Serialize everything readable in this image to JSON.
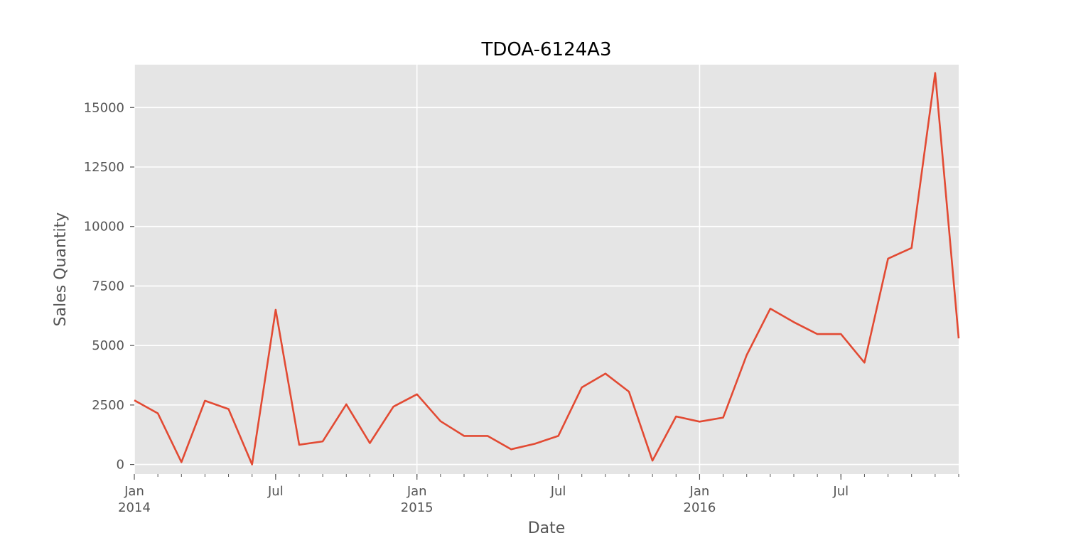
{
  "chart_data": {
    "type": "line",
    "title": "TDOA-6124A3",
    "xlabel": "Date",
    "ylabel": "Sales Quantity",
    "ylim": [
      -400,
      16800
    ],
    "xlim": [
      "2014-01",
      "2016-12"
    ],
    "grid": true,
    "colors": {
      "background": "#e5e5e5",
      "grid": "#ffffff",
      "line": "#e24a33",
      "tick_text": "#555555"
    },
    "y_ticks": [
      0,
      2500,
      5000,
      7500,
      10000,
      12500,
      15000
    ],
    "x_major_ticks": [
      {
        "date": "2014-01",
        "label": "Jan",
        "year": "2014"
      },
      {
        "date": "2014-07",
        "label": "Jul",
        "year": ""
      },
      {
        "date": "2015-01",
        "label": "Jan",
        "year": "2015"
      },
      {
        "date": "2015-07",
        "label": "Jul",
        "year": ""
      },
      {
        "date": "2016-01",
        "label": "Jan",
        "year": "2016"
      },
      {
        "date": "2016-07",
        "label": "Jul",
        "year": ""
      }
    ],
    "series": [
      {
        "x": [
          "2014-01",
          "2014-02",
          "2014-03",
          "2014-04",
          "2014-05",
          "2014-06",
          "2014-07",
          "2014-08",
          "2014-09",
          "2014-10",
          "2014-11",
          "2014-12",
          "2015-01",
          "2015-02",
          "2015-03",
          "2015-04",
          "2015-05",
          "2015-06",
          "2015-07",
          "2015-08",
          "2015-09",
          "2015-10",
          "2015-11",
          "2015-12",
          "2016-01",
          "2016-02",
          "2016-03",
          "2016-04",
          "2016-05",
          "2016-06",
          "2016-07",
          "2016-08",
          "2016-09",
          "2016-10",
          "2016-11",
          "2016-12"
        ],
        "values": [
          2700,
          2150,
          100,
          2680,
          2330,
          0,
          6500,
          830,
          970,
          2530,
          900,
          2430,
          2950,
          1820,
          1200,
          1200,
          640,
          870,
          1200,
          3240,
          3820,
          3060,
          160,
          2020,
          1800,
          1970,
          4600,
          6550,
          5980,
          5480,
          5480,
          4280,
          8650,
          9100,
          16450,
          5300
        ]
      }
    ]
  }
}
